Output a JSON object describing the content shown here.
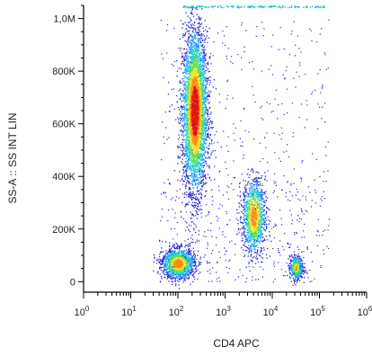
{
  "chart_data": {
    "type": "scatter",
    "plot_style": "flow-cytometry density dot plot",
    "xlabel": "CD4 APC",
    "ylabel": "SS-A :: SS INT LIN",
    "x_scale": "log",
    "xlim": [
      1,
      1000000
    ],
    "ylim": [
      -40000,
      1050000
    ],
    "x_ticks": [
      {
        "value": 1,
        "base": "10",
        "exp": "0"
      },
      {
        "value": 10,
        "base": "10",
        "exp": "1"
      },
      {
        "value": 100,
        "base": "10",
        "exp": "2"
      },
      {
        "value": 1000,
        "base": "10",
        "exp": "3"
      },
      {
        "value": 10000,
        "base": "10",
        "exp": "4"
      },
      {
        "value": 100000,
        "base": "10",
        "exp": "5"
      },
      {
        "value": 1000000,
        "base": "10",
        "exp": "6"
      }
    ],
    "y_ticks": [
      {
        "value": 0,
        "label": "0"
      },
      {
        "value": 200000,
        "label": "200K"
      },
      {
        "value": 400000,
        "label": "400K"
      },
      {
        "value": 600000,
        "label": "600K"
      },
      {
        "value": 800000,
        "label": "800K"
      },
      {
        "value": 1000000,
        "label": "1,0M"
      }
    ],
    "populations": [
      {
        "x_log_center": 2.35,
        "x_log_sd": 0.13,
        "y_center": 650000,
        "y_sd": 150000,
        "relative_density": 0.48
      },
      {
        "x_log_center": 2.0,
        "x_log_sd": 0.17,
        "y_center": 70000,
        "y_sd": 28000,
        "relative_density": 0.17
      },
      {
        "x_log_center": 3.6,
        "x_log_sd": 0.12,
        "y_center": 250000,
        "y_sd": 70000,
        "relative_density": 0.14
      },
      {
        "x_log_center": 4.5,
        "x_log_sd": 0.07,
        "y_center": 55000,
        "y_sd": 22000,
        "relative_density": 0.06
      }
    ],
    "density_colors": [
      "#2323d8",
      "#1aa0ff",
      "#22d2c8",
      "#5de04a",
      "#f0e22a",
      "#ff8a1a",
      "#e8140c"
    ],
    "grid": false,
    "legend": "none"
  }
}
